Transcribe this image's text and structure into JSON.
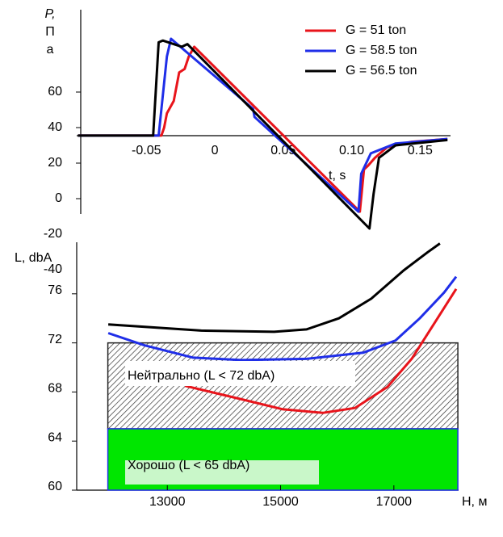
{
  "chart_data": [
    {
      "type": "line",
      "ylabel_lines": [
        "P,",
        "П",
        "а"
      ],
      "xlabel": "t, s",
      "xlim": [
        -0.1,
        0.17
      ],
      "ylim": [
        -40,
        100
      ],
      "xticks": [
        -0.05,
        0,
        0.05,
        {
          "value": 0.1,
          "label": "0.10"
        },
        0.15
      ],
      "yticks": [
        60,
        40,
        20,
        0,
        -20,
        -40
      ],
      "legend": "top-right",
      "series": [
        {
          "name": "G = 51 ton",
          "color": "#e8141b",
          "x": [
            -0.1,
            -0.039,
            -0.037,
            -0.035,
            -0.03,
            -0.026,
            -0.022,
            -0.019,
            -0.015,
            0.106,
            0.109,
            0.112,
            0.117,
            0.126,
            0.144,
            0.17
          ],
          "values": [
            35.5,
            35.5,
            40,
            48,
            55,
            71,
            73,
            80,
            85.5,
            -7.3,
            16.4,
            18.6,
            23,
            29,
            32,
            33.6
          ]
        },
        {
          "name": "G = 58.5 ton",
          "color": "#1f2ee8",
          "x": [
            -0.1,
            -0.041,
            -0.035,
            -0.032,
            0.028,
            0.029,
            0.105,
            0.107,
            0.114,
            0.132,
            0.17
          ],
          "values": [
            35.5,
            35.5,
            80,
            90,
            50.5,
            46,
            -7.3,
            14,
            25.5,
            31,
            33.6
          ]
        },
        {
          "name": "G = 56.5 ton",
          "color": "#000000",
          "x": [
            -0.1,
            -0.045,
            -0.041,
            -0.038,
            -0.024,
            -0.02,
            0.113,
            0.116,
            0.12,
            0.132,
            0.17
          ],
          "values": [
            35.5,
            35.5,
            88,
            89,
            85.5,
            87,
            -16.8,
            2.7,
            23,
            30,
            33
          ]
        }
      ]
    },
    {
      "type": "line",
      "ylabel": "L, dbA",
      "xlabel": "H, м",
      "xlim": [
        11400,
        18150
      ],
      "ylim": [
        60,
        80.2
      ],
      "xticks": [
        13000,
        15000,
        17000
      ],
      "yticks": [
        60,
        64,
        68,
        72,
        76
      ],
      "zones": [
        {
          "label": "Нейтрально (L < 72 dbA)",
          "from": 65,
          "to": 72,
          "x": [
            11950,
            18130
          ],
          "style": "hatch"
        },
        {
          "label": "Хорошо (L < 65 dbA)",
          "from": 60,
          "to": 65,
          "x": [
            11950,
            18130
          ],
          "color": "#00e600"
        }
      ],
      "series": [
        {
          "color": "#000000",
          "x": [
            11957,
            13600,
            14886,
            15457,
            16029,
            16600,
            17171,
            17600,
            17814
          ],
          "values": [
            73.5,
            73.0,
            72.9,
            73.1,
            74.0,
            75.6,
            77.9,
            79.4,
            80.1
          ]
        },
        {
          "color": "#1f2ee8",
          "x": [
            11957,
            12600,
            13457,
            14314,
            15457,
            16457,
            17029,
            17457,
            17886,
            18100
          ],
          "values": [
            72.8,
            71.8,
            70.8,
            70.6,
            70.7,
            71.2,
            72.2,
            74.0,
            76.1,
            77.4
          ]
        },
        {
          "color": "#e8141b",
          "x": [
            13314,
            14314,
            15029,
            15743,
            16314,
            16886,
            17314,
            17743,
            18100
          ],
          "values": [
            68.5,
            67.4,
            66.6,
            66.3,
            66.7,
            68.4,
            70.7,
            73.8,
            76.4
          ]
        }
      ]
    }
  ]
}
